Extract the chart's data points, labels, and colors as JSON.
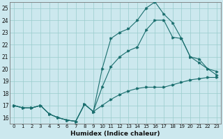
{
  "xlabel": "Humidex (Indice chaleur)",
  "bg_color": "#cce8ee",
  "line_color": "#1a6e6e",
  "grid_color": "#99cccc",
  "ylim": [
    15.5,
    25.5
  ],
  "xlim": [
    -0.5,
    23.5
  ],
  "yticks": [
    16,
    17,
    18,
    19,
    20,
    21,
    22,
    23,
    24,
    25
  ],
  "xticks": [
    0,
    1,
    2,
    3,
    4,
    5,
    6,
    7,
    8,
    9,
    10,
    11,
    12,
    13,
    14,
    15,
    16,
    17,
    18,
    19,
    20,
    21,
    22,
    23
  ],
  "line1_x": [
    0,
    1,
    2,
    3,
    4,
    5,
    6,
    7,
    8,
    9,
    10,
    11,
    12,
    13,
    14,
    15,
    16,
    17,
    18,
    19,
    20,
    21,
    22,
    23
  ],
  "line1_y": [
    17.0,
    16.8,
    16.8,
    17.0,
    16.3,
    16.0,
    15.8,
    15.7,
    17.1,
    16.5,
    17.0,
    17.5,
    17.9,
    18.2,
    18.4,
    18.5,
    18.5,
    18.5,
    18.7,
    18.9,
    19.1,
    19.2,
    19.3,
    19.3
  ],
  "line2_x": [
    0,
    1,
    2,
    3,
    4,
    5,
    6,
    7,
    8,
    9,
    10,
    11,
    12,
    13,
    14,
    15,
    16,
    17,
    18,
    19,
    20,
    21,
    22,
    23
  ],
  "line2_y": [
    17.0,
    16.8,
    16.8,
    17.0,
    16.3,
    16.0,
    15.8,
    15.7,
    17.1,
    16.5,
    18.5,
    20.2,
    21.0,
    21.5,
    21.8,
    23.2,
    24.0,
    24.0,
    22.6,
    22.5,
    21.0,
    20.8,
    20.0,
    19.8
  ],
  "line3_x": [
    0,
    1,
    2,
    3,
    4,
    5,
    6,
    7,
    8,
    9,
    10,
    11,
    12,
    13,
    14,
    15,
    16,
    17,
    18,
    19,
    20,
    21,
    22,
    23
  ],
  "line3_y": [
    17.0,
    16.8,
    16.8,
    17.0,
    16.3,
    16.0,
    15.8,
    15.7,
    17.1,
    16.5,
    20.0,
    22.5,
    23.0,
    23.3,
    24.0,
    25.0,
    25.5,
    24.5,
    23.8,
    22.5,
    21.0,
    20.5,
    20.0,
    19.5
  ]
}
